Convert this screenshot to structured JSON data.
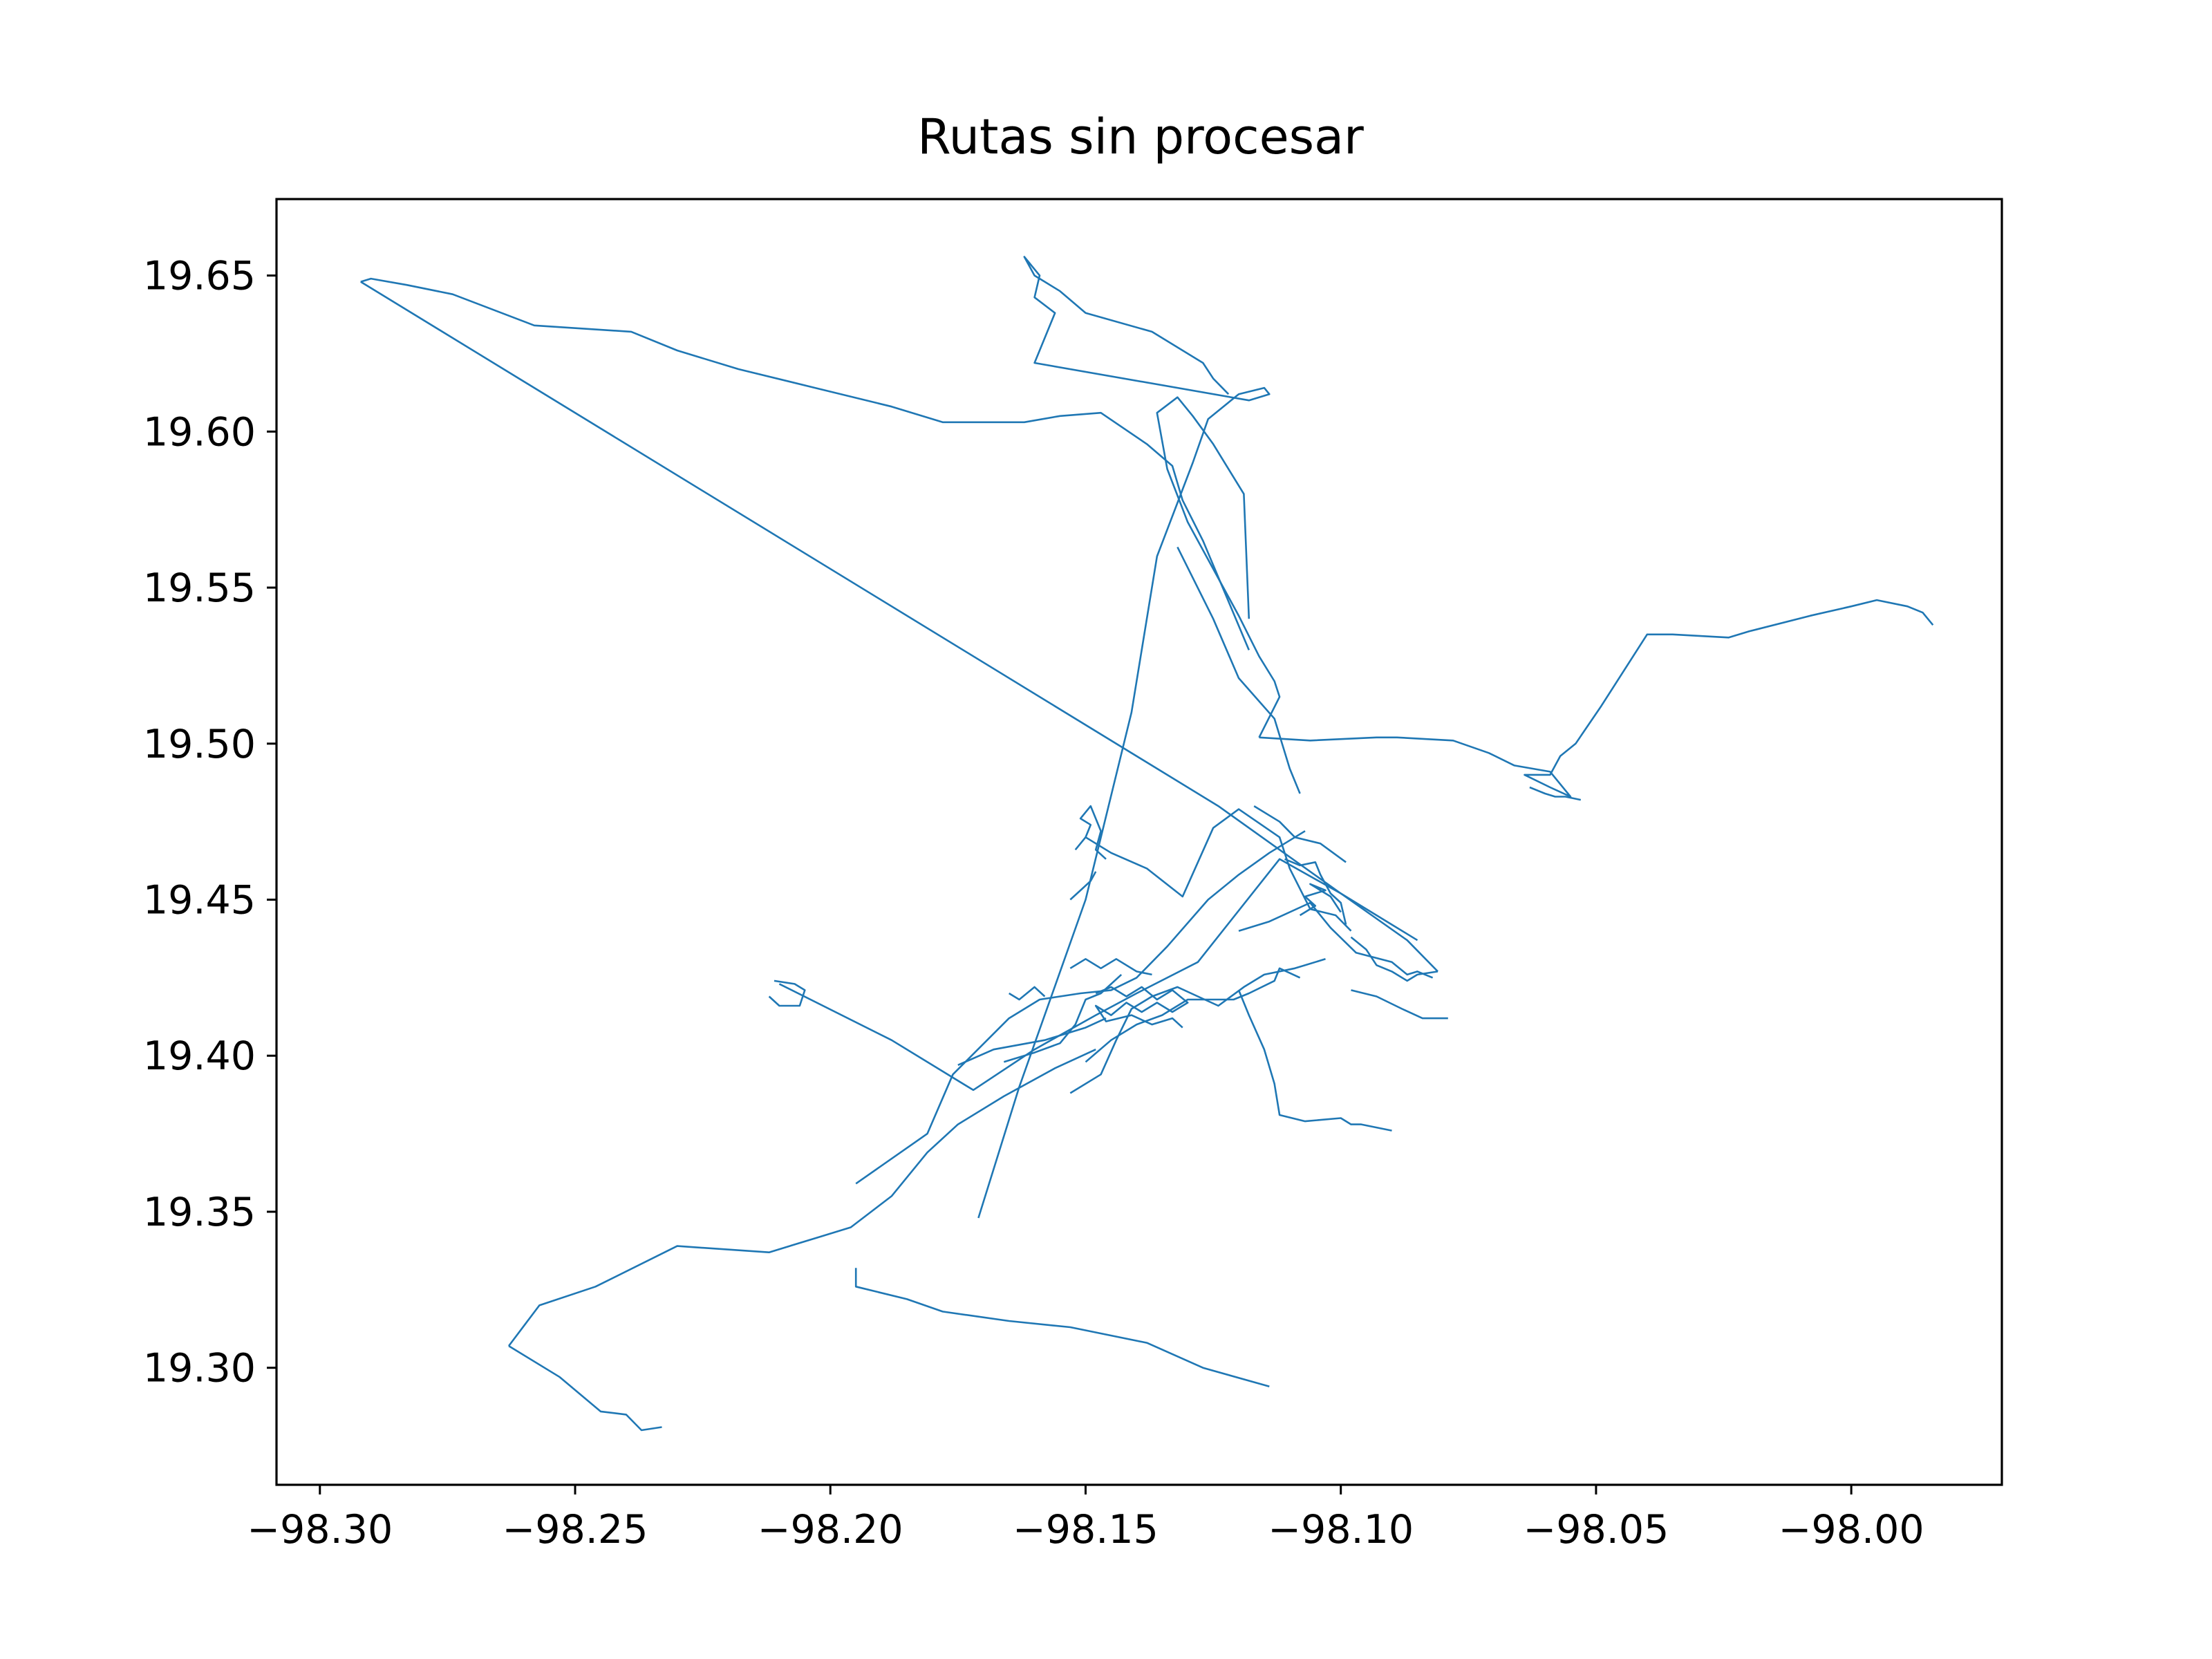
{
  "chart_data": {
    "type": "line",
    "title": "Rutas sin procesar",
    "xlabel": "",
    "ylabel": "",
    "xlim": [
      -98.3085,
      -97.9705
    ],
    "ylim": [
      19.2625,
      19.6745
    ],
    "xticks": [
      -98.3,
      -98.25,
      -98.2,
      -98.15,
      -98.1,
      -98.05,
      -98.0
    ],
    "xtick_labels": [
      "−98.30",
      "−98.25",
      "−98.20",
      "−98.15",
      "−98.10",
      "−98.05",
      "−98.00"
    ],
    "yticks": [
      19.3,
      19.35,
      19.4,
      19.45,
      19.5,
      19.55,
      19.6,
      19.65
    ],
    "ytick_labels": [
      "19.30",
      "19.35",
      "19.40",
      "19.45",
      "19.50",
      "19.55",
      "19.60",
      "19.65"
    ],
    "grid": false,
    "line_color": "#1f77b4",
    "series": [
      {
        "x": [
          -98.292,
          -98.29,
          -98.283,
          -98.274,
          -98.258,
          -98.239,
          -98.23,
          -98.218,
          -98.203,
          -98.188,
          -98.178,
          -98.162,
          -98.155,
          -98.147,
          -98.138,
          -98.133,
          -98.131,
          -98.127,
          -98.118
        ],
        "y": [
          19.648,
          19.649,
          19.647,
          19.644,
          19.634,
          19.632,
          19.626,
          19.62,
          19.614,
          19.608,
          19.603,
          19.603,
          19.605,
          19.606,
          19.596,
          19.589,
          19.578,
          19.565,
          19.53
        ]
      },
      {
        "x": [
          -98.292,
          -98.124,
          -98.112,
          -98.1,
          -98.087,
          -98.081
        ],
        "y": [
          19.648,
          19.48,
          19.466,
          19.452,
          19.437,
          19.427
        ]
      },
      {
        "x": [
          -98.116,
          -98.112,
          -98.113,
          -98.116,
          -98.12,
          -98.125,
          -98.13,
          -98.134,
          -98.136,
          -98.132,
          -98.129,
          -98.125,
          -98.119,
          -98.118
        ],
        "y": [
          19.502,
          19.515,
          19.52,
          19.528,
          19.541,
          19.556,
          19.571,
          19.588,
          19.606,
          19.611,
          19.605,
          19.596,
          19.58,
          19.54
        ]
      },
      {
        "x": [
          -98.171,
          -98.163,
          -98.15,
          -98.141,
          -98.136,
          -98.129,
          -98.126,
          -98.12,
          -98.115,
          -98.114,
          -98.118,
          -98.16,
          -98.156,
          -98.16,
          -98.159,
          -98.161,
          -98.162,
          -98.16,
          -98.158,
          -98.155,
          -98.15,
          -98.137,
          -98.127,
          -98.125,
          -98.122
        ],
        "y": [
          19.348,
          19.39,
          19.45,
          19.51,
          19.56,
          19.59,
          19.604,
          19.612,
          19.614,
          19.612,
          19.61,
          19.622,
          19.638,
          19.643,
          19.65,
          19.654,
          19.656,
          19.65,
          19.648,
          19.645,
          19.638,
          19.632,
          19.622,
          19.617,
          19.612
        ]
      },
      {
        "x": [
          -98.116,
          -98.106,
          -98.093,
          -98.089,
          -98.078,
          -98.071,
          -98.066,
          -98.059,
          -98.055,
          -98.059,
          -98.064,
          -98.059,
          -98.057,
          -98.054,
          -98.049,
          -98.04,
          -98.035,
          -98.024,
          -98.02,
          -98.008,
          -98.0,
          -97.995,
          -97.989,
          -97.986,
          -97.984
        ],
        "y": [
          19.502,
          19.501,
          19.502,
          19.502,
          19.501,
          19.497,
          19.493,
          19.491,
          19.483,
          19.486,
          19.49,
          19.49,
          19.496,
          19.5,
          19.512,
          19.535,
          19.535,
          19.534,
          19.536,
          19.541,
          19.544,
          19.546,
          19.544,
          19.542,
          19.538
        ]
      },
      {
        "x": [
          -98.21,
          -98.188,
          -98.172,
          -98.16,
          -98.148,
          -98.14,
          -98.128,
          -98.112,
          -98.1,
          -98.09,
          -98.085
        ],
        "y": [
          19.423,
          19.405,
          19.389,
          19.402,
          19.413,
          19.42,
          19.43,
          19.463,
          19.452,
          19.442,
          19.437
        ]
      },
      {
        "x": [
          -98.195,
          -98.181,
          -98.176,
          -98.165,
          -98.159,
          -98.151,
          -98.145,
          -98.14,
          -98.134,
          -98.126,
          -98.12,
          -98.114,
          -98.107
        ],
        "y": [
          19.359,
          19.375,
          19.394,
          19.412,
          19.418,
          19.42,
          19.421,
          19.425,
          19.435,
          19.45,
          19.458,
          19.465,
          19.472
        ]
      },
      {
        "x": [
          -98.263,
          -98.257,
          -98.246,
          -98.23,
          -98.212,
          -98.202,
          -98.196,
          -98.188,
          -98.181,
          -98.175,
          -98.166,
          -98.156,
          -98.148
        ],
        "y": [
          19.307,
          19.32,
          19.326,
          19.339,
          19.337,
          19.342,
          19.345,
          19.355,
          19.369,
          19.378,
          19.387,
          19.396,
          19.402
        ]
      },
      {
        "x": [
          -98.263,
          -98.253,
          -98.245,
          -98.24,
          -98.237,
          -98.233
        ],
        "y": [
          19.307,
          19.297,
          19.286,
          19.285,
          19.28,
          19.281
        ]
      },
      {
        "x": [
          -98.195,
          -98.195,
          -98.185,
          -98.178,
          -98.165,
          -98.153,
          -98.138,
          -98.127,
          -98.114
        ],
        "y": [
          19.332,
          19.326,
          19.322,
          19.318,
          19.315,
          19.313,
          19.308,
          19.3,
          19.294
        ]
      },
      {
        "x": [
          -98.211,
          -98.207,
          -98.205,
          -98.206,
          -98.21,
          -98.212
        ],
        "y": [
          19.424,
          19.423,
          19.421,
          19.416,
          19.416,
          19.419
        ]
      },
      {
        "x": [
          -98.15,
          -98.145,
          -98.138,
          -98.131,
          -98.125,
          -98.12,
          -98.112,
          -98.11,
          -98.106,
          -98.101,
          -98.098
        ],
        "y": [
          19.47,
          19.465,
          19.46,
          19.451,
          19.473,
          19.479,
          19.47,
          19.46,
          19.447,
          19.445,
          19.44
        ]
      },
      {
        "x": [
          -98.12,
          -98.114,
          -98.106,
          -98.102,
          -98.097,
          -98.09,
          -98.087,
          -98.085,
          -98.082
        ],
        "y": [
          19.44,
          19.443,
          19.449,
          19.441,
          19.433,
          19.43,
          19.426,
          19.427,
          19.425
        ]
      },
      {
        "x": [
          -98.132,
          -98.125,
          -98.12,
          -98.113,
          -98.11,
          -98.108
        ],
        "y": [
          19.563,
          19.54,
          19.521,
          19.508,
          19.492,
          19.484
        ]
      },
      {
        "x": [
          -98.12,
          -98.118,
          -98.115,
          -98.113,
          -98.112,
          -98.107,
          -98.1,
          -98.098,
          -98.096,
          -98.09
        ],
        "y": [
          19.421,
          19.413,
          19.402,
          19.391,
          19.381,
          19.379,
          19.38,
          19.378,
          19.378,
          19.376
        ]
      },
      {
        "x": [
          -98.15,
          -98.145,
          -98.14,
          -98.135,
          -98.13,
          -98.125,
          -98.121,
          -98.118,
          -98.113,
          -98.112,
          -98.108
        ],
        "y": [
          19.398,
          19.405,
          19.41,
          19.413,
          19.418,
          19.418,
          19.418,
          19.42,
          19.424,
          19.428,
          19.425
        ]
      },
      {
        "x": [
          -98.153,
          -98.147,
          -98.144,
          -98.141,
          -98.137,
          -98.132,
          -98.128,
          -98.124,
          -98.119,
          -98.115,
          -98.109,
          -98.103
        ],
        "y": [
          19.388,
          19.394,
          19.405,
          19.415,
          19.419,
          19.422,
          19.419,
          19.416,
          19.422,
          19.426,
          19.428,
          19.431
        ]
      },
      {
        "x": [
          -98.148,
          -98.145,
          -98.142,
          -98.139,
          -98.136,
          -98.133,
          -98.13,
          -98.133,
          -98.136,
          -98.139,
          -98.142,
          -98.145,
          -98.148,
          -98.146,
          -98.141,
          -98.137,
          -98.133,
          -98.131
        ],
        "y": [
          19.42,
          19.422,
          19.419,
          19.422,
          19.418,
          19.421,
          19.417,
          19.414,
          19.417,
          19.414,
          19.417,
          19.413,
          19.416,
          19.411,
          19.413,
          19.41,
          19.412,
          19.409
        ]
      },
      {
        "x": [
          -98.153,
          -98.15,
          -98.147,
          -98.144,
          -98.14,
          -98.137
        ],
        "y": [
          19.428,
          19.431,
          19.428,
          19.431,
          19.427,
          19.426
        ]
      },
      {
        "x": [
          -98.166,
          -98.16,
          -98.155,
          -98.152,
          -98.15,
          -98.147,
          -98.143
        ],
        "y": [
          19.398,
          19.401,
          19.404,
          19.41,
          19.418,
          19.42,
          19.426
        ]
      },
      {
        "x": [
          -98.175,
          -98.168,
          -98.158,
          -98.15,
          -98.146
        ],
        "y": [
          19.397,
          19.402,
          19.405,
          19.409,
          19.412
        ]
      },
      {
        "x": [
          -98.165,
          -98.163,
          -98.16,
          -98.158
        ],
        "y": [
          19.42,
          19.418,
          19.422,
          19.419
        ]
      },
      {
        "x": [
          -98.152,
          -98.15,
          -98.149,
          -98.151,
          -98.149,
          -98.147,
          -98.148,
          -98.146
        ],
        "y": [
          19.466,
          19.47,
          19.474,
          19.476,
          19.48,
          19.472,
          19.466,
          19.463
        ]
      },
      {
        "x": [
          -98.153,
          -98.151,
          -98.149,
          -98.148
        ],
        "y": [
          19.45,
          19.453,
          19.456,
          19.459
        ]
      },
      {
        "x": [
          -98.111,
          -98.108,
          -98.105,
          -98.104,
          -98.102,
          -98.1,
          -98.099
        ],
        "y": [
          19.463,
          19.461,
          19.462,
          19.458,
          19.452,
          19.449,
          19.442
        ]
      },
      {
        "x": [
          -98.108,
          -98.105,
          -98.107,
          -98.103,
          -98.106,
          -98.102,
          -98.1
        ],
        "y": [
          19.445,
          19.448,
          19.451,
          19.453,
          19.455,
          19.451,
          19.446
        ]
      },
      {
        "x": [
          -98.098,
          -98.095,
          -98.093,
          -98.09,
          -98.087,
          -98.085,
          -98.081
        ],
        "y": [
          19.438,
          19.434,
          19.429,
          19.427,
          19.424,
          19.426,
          19.427
        ]
      },
      {
        "x": [
          -98.098,
          -98.093,
          -98.088,
          -98.084,
          -98.079
        ],
        "y": [
          19.421,
          19.419,
          19.415,
          19.412,
          19.412
        ]
      },
      {
        "x": [
          -98.117,
          -98.112,
          -98.109,
          -98.104,
          -98.099
        ],
        "y": [
          19.48,
          19.475,
          19.47,
          19.468,
          19.462
        ]
      },
      {
        "x": [
          -98.063,
          -98.06,
          -98.058,
          -98.056,
          -98.053
        ],
        "y": [
          19.486,
          19.484,
          19.483,
          19.483,
          19.482
        ]
      }
    ]
  }
}
